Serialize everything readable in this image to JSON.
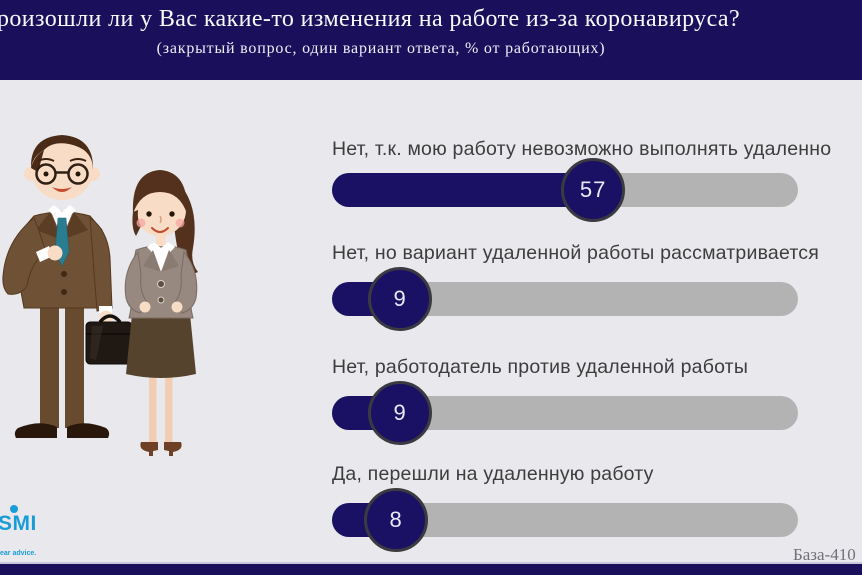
{
  "header": {
    "title": "роизошли ли у Вас какие-то изменения на работе из-за коронавируса?",
    "subtitle": "(закрытый вопрос, один вариант ответа, % от работающих)"
  },
  "chart_data": {
    "type": "bar",
    "orientation": "horizontal",
    "title": "роизошли ли у Вас какие-то изменения на работе из-за коронавируса?",
    "subtitle": "(закрытый вопрос, один вариант ответа, % от работающих)",
    "categories": [
      "Нет, т.к. мою работу невозможно выполнять удаленно",
      "Нет, но вариант удаленной работы рассматривается",
      "Нет, работодатель против удаленной работы",
      "Да, перешли на удаленную работу"
    ],
    "values": [
      57,
      9,
      9,
      8
    ],
    "value_unit": "%",
    "xlim": [
      0,
      100
    ],
    "grid": false,
    "legend": false,
    "style": "pill track with circular value knob"
  },
  "footer": {
    "base_label": "База-410",
    "logo": {
      "text": "SMI",
      "tagline": "ear advice.",
      "color": "#1a9cd8"
    }
  },
  "illustration": {
    "name": "office-man-and-woman-clipart"
  },
  "colors": {
    "header_bg": "#190f5a",
    "body_bg": "#e9e9ed",
    "bar_fill": "#1b1164",
    "bar_track": "#b3b3b3",
    "knob_ring": "#3b3a40",
    "label_text": "#3d3d3d",
    "base_text": "#70707a",
    "logo_blue": "#1a9cd8",
    "footer_line": "#c7c7d9"
  }
}
